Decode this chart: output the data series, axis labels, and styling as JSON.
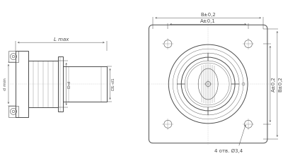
{
  "bg_color": "#ffffff",
  "line_color": "#4a4a4a",
  "thin_line": 0.4,
  "thick_line": 0.7,
  "dim_line": 0.35,
  "center_line_color": "#888888",
  "labels": {
    "L_max": "L max",
    "D1_d1": "D1-d1",
    "D_d": "D-d",
    "d_min": "d min",
    "B_d02_top": "B±0,2",
    "A_d01": "A±0,1",
    "A_d02": "A±0,2",
    "B_d02_right": "B±0,2",
    "holes": "4 отв. Ø3,4"
  },
  "font_size": 5.0,
  "font_size_small": 4.5
}
